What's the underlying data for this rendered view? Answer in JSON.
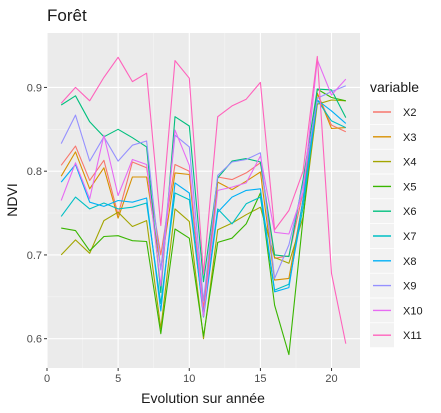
{
  "chart_data": {
    "type": "line",
    "title": "Forêt",
    "xlabel": "Evolution sur année",
    "ylabel": "NDVI",
    "xlim": [
      0,
      22
    ],
    "ylim": [
      0.565,
      0.965
    ],
    "xticks": [
      0,
      5,
      10,
      15,
      20
    ],
    "yticks": [
      0.6,
      0.7,
      0.8,
      0.9
    ],
    "grid": true,
    "legend_title": "variable",
    "legend_position": "right",
    "x": [
      1,
      2,
      3,
      4,
      5,
      6,
      7,
      8,
      9,
      10,
      11,
      12,
      13,
      14,
      15,
      16,
      17,
      18,
      19,
      20,
      21
    ],
    "series": [
      {
        "name": "X2",
        "color": "#F8766D",
        "values": [
          0.807,
          0.83,
          0.789,
          0.813,
          0.748,
          0.811,
          0.804,
          0.7,
          0.808,
          0.8,
          0.636,
          0.793,
          0.79,
          0.798,
          0.81,
          0.696,
          0.699,
          0.775,
          0.893,
          0.855,
          0.847
        ]
      },
      {
        "name": "X3",
        "color": "#D89000",
        "values": [
          0.794,
          0.823,
          0.779,
          0.804,
          0.744,
          0.793,
          0.793,
          0.684,
          0.798,
          0.796,
          0.626,
          0.787,
          0.778,
          0.788,
          0.799,
          0.67,
          0.672,
          0.766,
          0.893,
          0.851,
          0.852
        ]
      },
      {
        "name": "X4",
        "color": "#A3A500",
        "values": [
          0.7,
          0.718,
          0.702,
          0.741,
          0.751,
          0.734,
          0.741,
          0.612,
          0.755,
          0.74,
          0.6,
          0.73,
          0.738,
          0.748,
          0.757,
          0.697,
          0.69,
          0.745,
          0.88,
          0.885,
          0.884
        ]
      },
      {
        "name": "X5",
        "color": "#39B600",
        "values": [
          0.732,
          0.729,
          0.705,
          0.722,
          0.723,
          0.717,
          0.716,
          0.606,
          0.731,
          0.72,
          0.603,
          0.715,
          0.72,
          0.737,
          0.774,
          0.64,
          0.581,
          0.744,
          0.898,
          0.888,
          0.884
        ]
      },
      {
        "name": "X6",
        "color": "#00BF7D",
        "values": [
          0.879,
          0.89,
          0.859,
          0.841,
          0.85,
          0.84,
          0.829,
          0.655,
          0.865,
          0.854,
          0.668,
          0.792,
          0.812,
          0.815,
          0.811,
          0.7,
          0.698,
          0.79,
          0.898,
          0.897,
          0.864
        ]
      },
      {
        "name": "X7",
        "color": "#00BFC4",
        "values": [
          0.746,
          0.769,
          0.755,
          0.762,
          0.755,
          0.757,
          0.762,
          0.642,
          0.774,
          0.766,
          0.63,
          0.755,
          0.737,
          0.761,
          0.769,
          0.658,
          0.665,
          0.757,
          0.885,
          0.86,
          0.852
        ]
      },
      {
        "name": "X8",
        "color": "#00B0F6",
        "values": [
          0.787,
          0.808,
          0.763,
          0.758,
          0.765,
          0.763,
          0.768,
          0.633,
          0.786,
          0.774,
          0.626,
          0.751,
          0.769,
          0.777,
          0.779,
          0.656,
          0.661,
          0.767,
          0.885,
          0.872,
          0.857
        ]
      },
      {
        "name": "X9",
        "color": "#9590FF",
        "values": [
          0.833,
          0.867,
          0.812,
          0.841,
          0.812,
          0.831,
          0.836,
          0.682,
          0.843,
          0.829,
          0.645,
          0.795,
          0.811,
          0.814,
          0.822,
          0.672,
          0.712,
          0.784,
          0.887,
          0.895,
          0.902
        ]
      },
      {
        "name": "X10",
        "color": "#E76BF3",
        "values": [
          0.765,
          0.81,
          0.767,
          0.843,
          0.771,
          0.814,
          0.808,
          0.663,
          0.849,
          0.807,
          0.627,
          0.777,
          0.781,
          0.786,
          0.818,
          0.727,
          0.725,
          0.775,
          0.933,
          0.891,
          0.91
        ]
      },
      {
        "name": "X11",
        "color": "#FF62BC",
        "values": [
          0.881,
          0.9,
          0.884,
          0.912,
          0.936,
          0.907,
          0.917,
          0.735,
          0.932,
          0.911,
          0.677,
          0.865,
          0.878,
          0.886,
          0.906,
          0.73,
          0.753,
          0.8,
          0.937,
          0.678,
          0.594
        ]
      }
    ]
  }
}
